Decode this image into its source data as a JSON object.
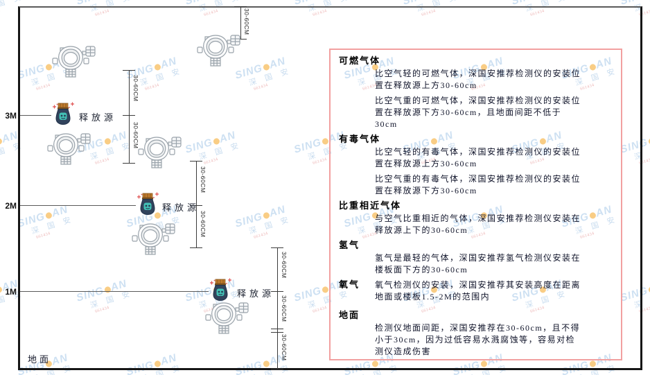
{
  "watermark": {
    "brand_prefix": "SING",
    "brand_suffix": "AN",
    "brand_cn": "深 国 安",
    "micro_code": "661434",
    "accent_color": "#f5a623",
    "text_color": "#a5c8e8"
  },
  "diagram": {
    "axis_labels": [
      "3M",
      "2M",
      "1M"
    ],
    "ground_label": "地面",
    "release_source_label": "释放源",
    "dimension_label": "30-60CM"
  },
  "panel": {
    "border_color": "#f2a0a0",
    "sections": [
      {
        "heading": "可燃气体",
        "inline_heading": false,
        "paragraphs": [
          "比空气轻的可燃气体，深国安推荐检测仪的安装位置在释放源上方30-60cm",
          "比空气重的可燃气体，深国安推荐检测仪的安装位置在释放源下方30-60cm，且地面间距不低于30cm"
        ]
      },
      {
        "heading": "有毒气体",
        "inline_heading": false,
        "paragraphs": [
          "比空气轻的有毒气体，深国安推荐检测仪的安装位置在释放源上方30-60cm",
          "比空气重的有毒气体，深国安推荐检测仪的安装位置在释放源下方30-60cm"
        ]
      },
      {
        "heading": "比重相近气体",
        "inline_heading": false,
        "paragraphs": [
          "与空气比重相近的气体，深国安推荐检测仪安装在释放源上下的30-60cm"
        ]
      },
      {
        "heading": "氢气",
        "inline_heading": false,
        "paragraphs": [
          "氢气是最轻的气体，深国安推荐氢气检测仪安装在楼板面下方的30-60cm"
        ]
      },
      {
        "heading": "氧气",
        "inline_heading": true,
        "paragraphs": [
          "氧气检测仪的安装，深国安推荐其安装高度在距离地面或楼板1.5-2M的范围内"
        ]
      },
      {
        "heading": "地面",
        "inline_heading": false,
        "paragraphs": [
          "检测仪地面间距，深国安推荐在30-60cm，且不得小于30cm，因为过低容易水溅腐蚀等，容易对检测仪造成伤害"
        ]
      }
    ]
  }
}
